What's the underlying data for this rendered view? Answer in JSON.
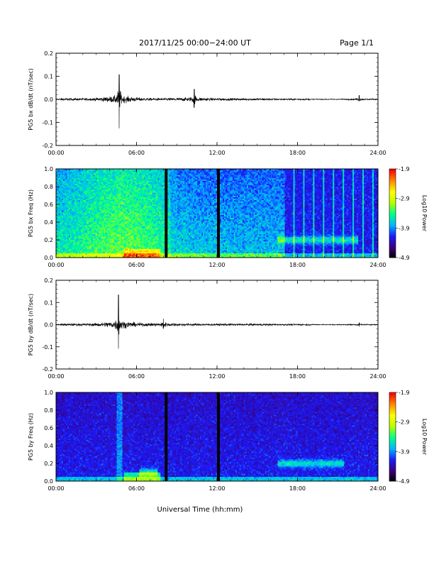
{
  "header": {
    "title": "2017/11/25  00:00−24:00 UT",
    "page": "Page 1/1"
  },
  "xlabel": "Universal Time (hh:mm)",
  "colors": {
    "trace": "#000000",
    "colormap": [
      "#000000",
      "#3a0078",
      "#1a1aff",
      "#00b4ff",
      "#00ff8c",
      "#b4ff00",
      "#ffff00",
      "#ff8c00",
      "#ff0000"
    ]
  },
  "chart_data": [
    {
      "type": "line",
      "ylabel": "PG5 bx dB/dt (nT/sec)",
      "xlim": [
        0,
        24
      ],
      "ylim": [
        -0.2,
        0.2
      ],
      "x_tick_labels": [
        "00:00",
        "06:00",
        "12:00",
        "18:00",
        "24:00"
      ],
      "y_tick_labels": [
        "0.2",
        "0.1",
        "0.0",
        "-0.1",
        "-0.2"
      ],
      "features": [
        {
          "t": 4.7,
          "peak": 0.12,
          "trough": -0.14
        },
        {
          "t": 10.3,
          "peak": 0.05,
          "trough": -0.04
        },
        {
          "t": 22.6,
          "peak": 0.02,
          "trough": -0.01
        }
      ]
    },
    {
      "type": "heatmap",
      "ylabel": "PG5 bx Freq (Hz)",
      "xlim": [
        0,
        24
      ],
      "ylim": [
        0,
        1
      ],
      "x_tick_labels": [
        "00:00",
        "06:00",
        "12:00",
        "18:00",
        "24:00"
      ],
      "y_tick_labels": [
        "1.0",
        "0.8",
        "0.6",
        "0.4",
        "0.2",
        "0.0"
      ],
      "colorbar": {
        "label": "Log10 Power",
        "ticks": [
          "-1.9",
          "-2.9",
          "-3.9",
          "-4.9"
        ],
        "range": [
          -4.9,
          -1.9
        ]
      },
      "data_gaps_hours": [
        8.2,
        12.1
      ],
      "features": [
        {
          "t_range": [
            0,
            17.1
          ],
          "note": "broadband"
        },
        {
          "t_range": [
            17.1,
            24
          ],
          "note": "quiet with vertical stripes"
        },
        {
          "t_range": [
            16.5,
            22.5
          ],
          "freq": 0.2,
          "note": "band"
        }
      ]
    },
    {
      "type": "line",
      "ylabel": "PG5 by dB/dt (nT/sec)",
      "xlim": [
        0,
        24
      ],
      "ylim": [
        -0.2,
        0.2
      ],
      "x_tick_labels": [
        "00:00",
        "06:00",
        "12:00",
        "18:00",
        "24:00"
      ],
      "y_tick_labels": [
        "0.2",
        "0.1",
        "0.0",
        "-0.1",
        "-0.2"
      ],
      "features": [
        {
          "t": 4.65,
          "peak": 0.15,
          "trough": -0.12
        },
        {
          "t": 8.0,
          "peak": 0.03,
          "trough": -0.02
        },
        {
          "t": 22.6,
          "peak": 0.01,
          "trough": -0.01
        }
      ]
    },
    {
      "type": "heatmap",
      "ylabel": "PG5 by Freq (Hz)",
      "xlim": [
        0,
        24
      ],
      "ylim": [
        0,
        1
      ],
      "x_tick_labels": [
        "00:00",
        "06:00",
        "12:00",
        "18:00",
        "24:00"
      ],
      "y_tick_labels": [
        "1.0",
        "0.8",
        "0.6",
        "0.4",
        "0.2",
        "0.0"
      ],
      "colorbar": {
        "label": "Log10 Power",
        "ticks": [
          "-1.9",
          "-2.9",
          "-3.9",
          "-4.9"
        ],
        "range": [
          -4.9,
          -1.9
        ]
      },
      "data_gaps_hours": [
        8.2,
        12.1
      ],
      "features": [
        {
          "t_range": [
            0,
            24
          ],
          "note": "low background"
        },
        {
          "t_range": [
            6.2,
            7.6
          ],
          "freq": 0.1,
          "note": "enhanced"
        },
        {
          "t_range": [
            16.5,
            21.5
          ],
          "freq": 0.2,
          "note": "band"
        }
      ]
    }
  ]
}
